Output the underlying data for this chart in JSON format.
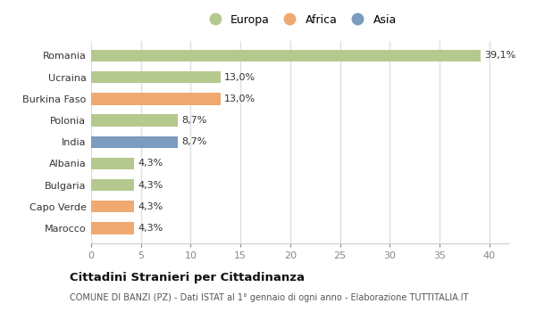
{
  "categories": [
    "Romania",
    "Ucraina",
    "Burkina Faso",
    "Polonia",
    "India",
    "Albania",
    "Bulgaria",
    "Capo Verde",
    "Marocco"
  ],
  "values": [
    39.1,
    13.0,
    13.0,
    8.7,
    8.7,
    4.3,
    4.3,
    4.3,
    4.3
  ],
  "labels": [
    "39,1%",
    "13,0%",
    "13,0%",
    "8,7%",
    "8,7%",
    "4,3%",
    "4,3%",
    "4,3%",
    "4,3%"
  ],
  "colors": [
    "#b5c98e",
    "#b5c98e",
    "#f0a970",
    "#b5c98e",
    "#7b9bbf",
    "#b5c98e",
    "#b5c98e",
    "#f0a970",
    "#f0a970"
  ],
  "legend_labels": [
    "Europa",
    "Africa",
    "Asia"
  ],
  "legend_colors": [
    "#b5c98e",
    "#f0a970",
    "#7b9bbf"
  ],
  "title": "Cittadini Stranieri per Cittadinanza",
  "subtitle": "COMUNE DI BANZI (PZ) - Dati ISTAT al 1° gennaio di ogni anno - Elaborazione TUTTITALIA.IT",
  "xlim": [
    0,
    42
  ],
  "xticks": [
    0,
    5,
    10,
    15,
    20,
    25,
    30,
    35,
    40
  ],
  "background_color": "#ffffff",
  "plot_bg_color": "#ffffff",
  "grid_color": "#e0e0e0",
  "bar_height": 0.55,
  "bar_alpha": 1.0,
  "label_fontsize": 8,
  "ytick_fontsize": 8,
  "xtick_fontsize": 8
}
